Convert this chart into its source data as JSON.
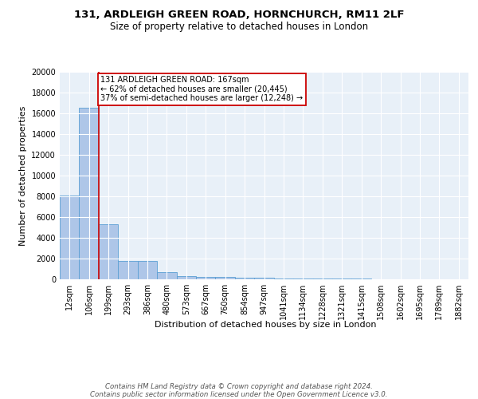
{
  "title1": "131, ARDLEIGH GREEN ROAD, HORNCHURCH, RM11 2LF",
  "title2": "Size of property relative to detached houses in London",
  "xlabel": "Distribution of detached houses by size in London",
  "ylabel": "Number of detached properties",
  "bin_labels": [
    "12sqm",
    "106sqm",
    "199sqm",
    "293sqm",
    "386sqm",
    "480sqm",
    "573sqm",
    "667sqm",
    "760sqm",
    "854sqm",
    "947sqm",
    "1041sqm",
    "1134sqm",
    "1228sqm",
    "1321sqm",
    "1415sqm",
    "1508sqm",
    "1602sqm",
    "1695sqm",
    "1789sqm",
    "1882sqm"
  ],
  "bar_values": [
    8100,
    16500,
    5300,
    1750,
    1750,
    700,
    300,
    220,
    200,
    170,
    130,
    100,
    80,
    60,
    50,
    40,
    30,
    25,
    20,
    15,
    10
  ],
  "bar_color": "#aec6e8",
  "bar_edge_color": "#5a9fd4",
  "bg_color": "#e8f0f8",
  "grid_color": "#ffffff",
  "annotation_text": "131 ARDLEIGH GREEN ROAD: 167sqm\n← 62% of detached houses are smaller (20,445)\n37% of semi-detached houses are larger (12,248) →",
  "vline_x": 1.5,
  "vline_color": "#cc0000",
  "annotation_box_color": "#ffffff",
  "annotation_box_edge": "#cc0000",
  "footer": "Contains HM Land Registry data © Crown copyright and database right 2024.\nContains public sector information licensed under the Open Government Licence v3.0.",
  "ylim": [
    0,
    20000
  ],
  "title1_fontsize": 9.5,
  "title2_fontsize": 8.5,
  "ylabel_fontsize": 8,
  "xlabel_fontsize": 8,
  "tick_fontsize": 7,
  "annotation_fontsize": 7,
  "footer_fontsize": 6.2
}
